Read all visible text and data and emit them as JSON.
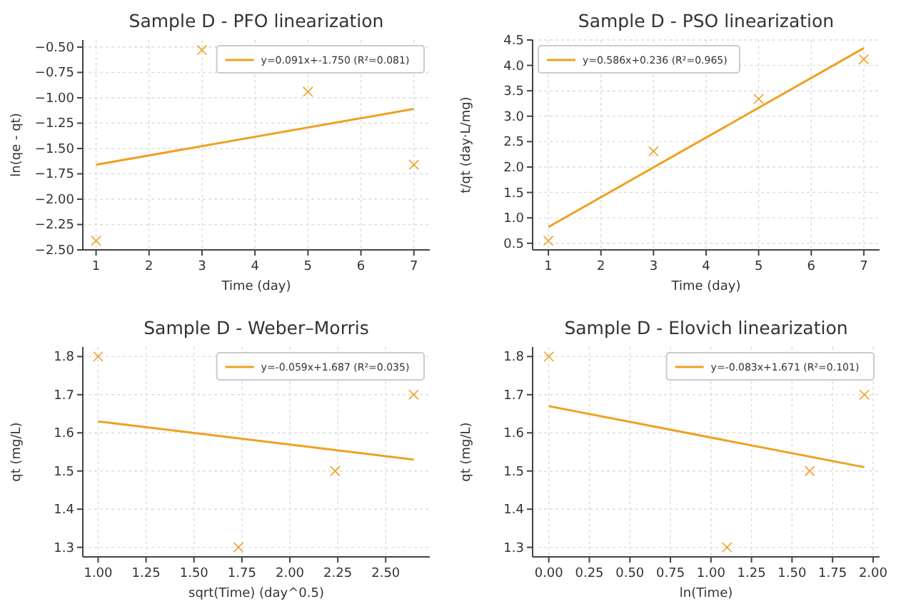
{
  "chart_data": [
    {
      "type": "scatter",
      "title": "Sample D - PFO linearization",
      "xlabel": "Time (day)",
      "ylabel": "ln(qe - qt)",
      "grid": true,
      "legend": "top right",
      "xlim": [
        0.75,
        7.3
      ],
      "ylim": [
        -2.5,
        -0.43
      ],
      "xticks": [
        1,
        2,
        3,
        4,
        5,
        6,
        7
      ],
      "yticks": [
        {
          "value": -2.5,
          "label": "−2.50"
        },
        {
          "value": -2.25,
          "label": "−2.25"
        },
        {
          "value": -2,
          "label": "−2.00"
        },
        {
          "value": -1.75,
          "label": "−1.75"
        },
        {
          "value": -1.5,
          "label": "−1.50"
        },
        {
          "value": -1.25,
          "label": "−1.25"
        },
        {
          "value": -1,
          "label": "−1.00"
        },
        {
          "value": -0.75,
          "label": "−0.75"
        },
        {
          "value": -0.5,
          "label": "−0.50"
        }
      ],
      "series": [
        {
          "type": "scatter",
          "marker": "cross",
          "color": "#f0a020",
          "x": [
            1,
            3,
            5,
            7
          ],
          "values": [
            -2.41,
            -0.53,
            -0.94,
            -1.66
          ]
        },
        {
          "type": "line",
          "marker": "none",
          "line_style": "solid",
          "name": "y=0.091x+-1.750 (R²=0.081)",
          "color": "#f0a020",
          "x": [
            1,
            7
          ],
          "values": [
            -1.66,
            -1.11
          ]
        }
      ]
    },
    {
      "type": "scatter",
      "title": "Sample D - PSO linearization",
      "xlabel": "Time (day)",
      "ylabel": "t/qt (day·L/mg)",
      "grid": true,
      "legend": "top left",
      "xlim": [
        0.7,
        7.3
      ],
      "ylim": [
        0.37,
        4.5
      ],
      "xticks": [
        1,
        2,
        3,
        4,
        5,
        6,
        7
      ],
      "yticks": [
        0.5,
        {
          "value": 1,
          "label": "1.0"
        },
        1.5,
        {
          "value": 2,
          "label": "2.0"
        },
        2.5,
        {
          "value": 3,
          "label": "3.0"
        },
        3.5,
        {
          "value": 4,
          "label": "4.0"
        },
        4.5
      ],
      "series": [
        {
          "type": "scatter",
          "marker": "cross",
          "color": "#f0a020",
          "x": [
            1,
            3,
            5,
            7
          ],
          "values": [
            0.55,
            2.31,
            3.34,
            4.12
          ]
        },
        {
          "type": "line",
          "marker": "none",
          "line_style": "solid",
          "name": "y=0.586x+0.236 (R²=0.965)",
          "color": "#f0a020",
          "x": [
            1,
            7
          ],
          "values": [
            0.82,
            4.34
          ]
        }
      ]
    },
    {
      "type": "scatter",
      "title": "Sample D - Weber–Morris",
      "xlabel": "sqrt(Time) (day^0.5)",
      "ylabel": "qt (mg/L)",
      "grid": true,
      "legend": "top right",
      "xlim": [
        0.92,
        2.73
      ],
      "ylim": [
        1.275,
        1.825
      ],
      "xticks": [
        {
          "value": 1,
          "label": "1.00"
        },
        1.25,
        {
          "value": 1.5,
          "label": "1.50"
        },
        1.75,
        {
          "value": 2,
          "label": "2.00"
        },
        2.25,
        {
          "value": 2.5,
          "label": "2.50"
        }
      ],
      "yticks": [
        1.3,
        1.4,
        1.5,
        1.6,
        1.7,
        1.8
      ],
      "series": [
        {
          "type": "scatter",
          "marker": "cross",
          "color": "#f0a020",
          "x": [
            1,
            1.732,
            2.236,
            2.646
          ],
          "values": [
            1.8,
            1.3,
            1.5,
            1.7
          ]
        },
        {
          "type": "line",
          "marker": "none",
          "line_style": "solid",
          "name": "y=-0.059x+1.687 (R²=0.035)",
          "color": "#f0a020",
          "x": [
            1,
            2.646
          ],
          "values": [
            1.63,
            1.53
          ]
        }
      ]
    },
    {
      "type": "scatter",
      "title": "Sample D - Elovich linearization",
      "xlabel": "ln(Time)",
      "ylabel": "qt (mg/L)",
      "grid": true,
      "legend": "top right",
      "xlim": [
        -0.1,
        2.04
      ],
      "ylim": [
        1.275,
        1.825
      ],
      "xticks": [
        {
          "value": 0,
          "label": "0.00"
        },
        0.25,
        {
          "value": 0.5,
          "label": "0.50"
        },
        0.75,
        {
          "value": 1,
          "label": "1.00"
        },
        1.25,
        {
          "value": 1.5,
          "label": "1.50"
        },
        1.75,
        {
          "value": 2,
          "label": "2.00"
        }
      ],
      "yticks": [
        1.3,
        1.4,
        1.5,
        1.6,
        1.7,
        1.8
      ],
      "series": [
        {
          "type": "scatter",
          "marker": "cross",
          "color": "#f0a020",
          "x": [
            0,
            1.099,
            1.609,
            1.946
          ],
          "values": [
            1.8,
            1.3,
            1.5,
            1.7
          ]
        },
        {
          "type": "line",
          "marker": "none",
          "line_style": "solid",
          "name": "y=-0.083x+1.671 (R²=0.101)",
          "color": "#f0a020",
          "x": [
            0,
            1.946
          ],
          "values": [
            1.67,
            1.51
          ]
        }
      ]
    }
  ]
}
